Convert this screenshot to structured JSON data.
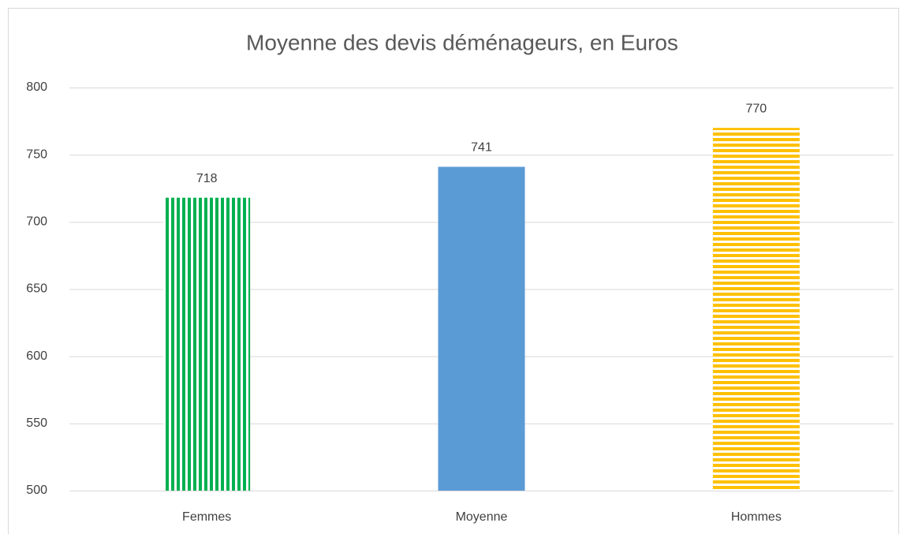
{
  "chart_data": {
    "type": "bar",
    "title": "Moyenne des devis déménageurs, en Euros",
    "categories": [
      "Femmes",
      "Moyenne",
      "Hommes"
    ],
    "values": [
      718,
      741,
      770
    ],
    "colors": [
      "#00b050",
      "#5b9bd5",
      "#ffc000"
    ],
    "patterns": [
      "vertical-stripes",
      "solid",
      "horizontal-stripes"
    ],
    "ylim": [
      500,
      800
    ],
    "yticks": [
      500,
      550,
      600,
      650,
      700,
      750,
      800
    ],
    "grid": true
  }
}
